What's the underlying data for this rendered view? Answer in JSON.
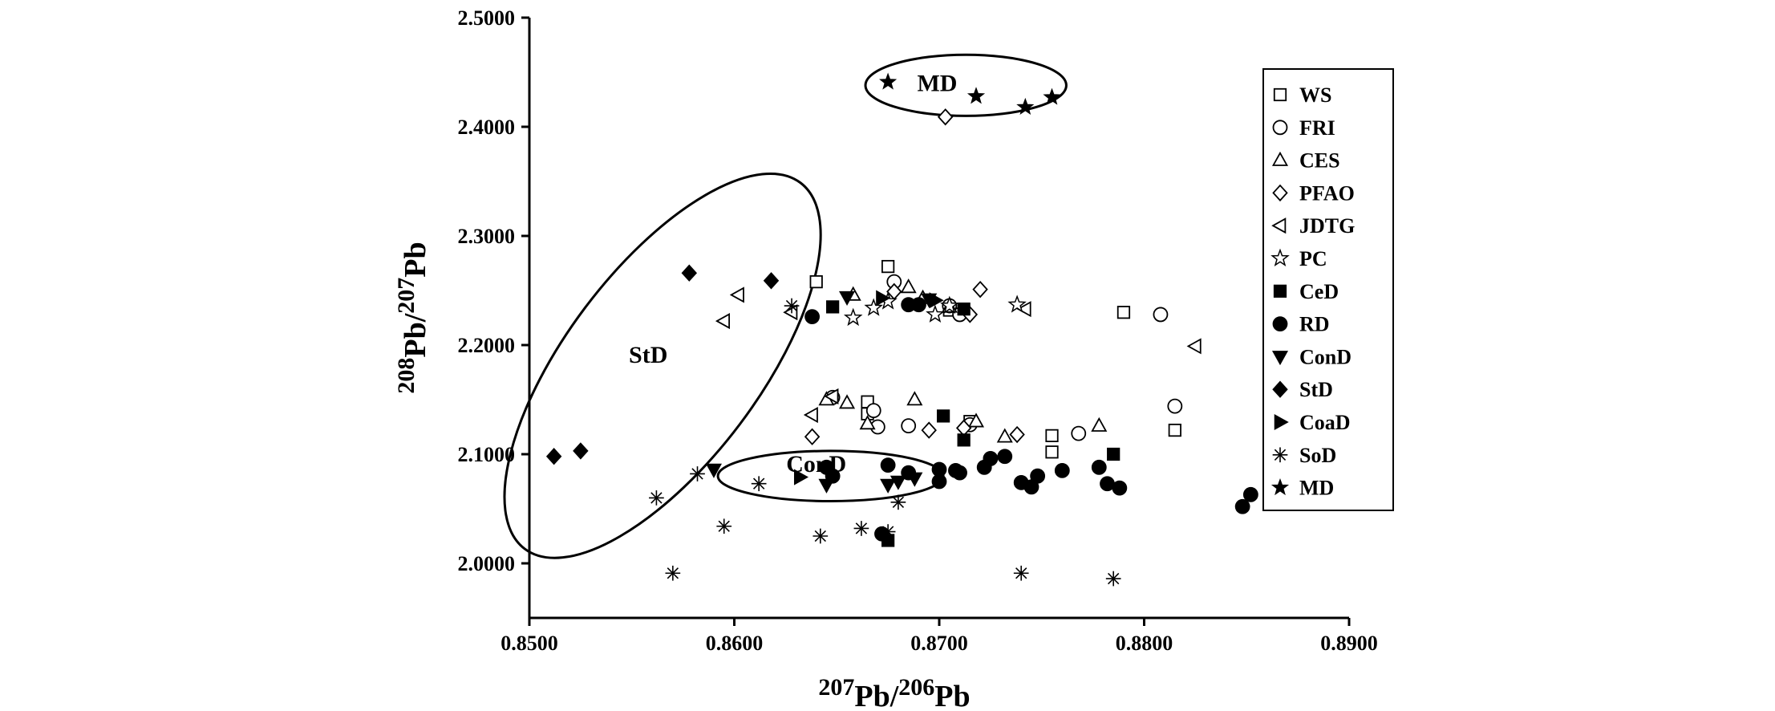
{
  "chart_data": {
    "type": "scatter",
    "title": "",
    "xlabel": {
      "sup1": "207",
      "base1": "Pb/",
      "sup2": "206",
      "base2": "Pb"
    },
    "ylabel": {
      "sup1": "208",
      "base1": "Pb/",
      "sup2": "207",
      "base2": "Pb"
    },
    "xlim": [
      0.85,
      0.89
    ],
    "ylim": [
      1.95,
      2.5
    ],
    "xticks": [
      0.85,
      0.86,
      0.87,
      0.88,
      0.89
    ],
    "xtick_labels": [
      "0.8500",
      "0.8600",
      "0.8700",
      "0.8800",
      "0.8900"
    ],
    "yticks": [
      2.0,
      2.1,
      2.2,
      2.3,
      2.4,
      2.5
    ],
    "ytick_labels": [
      "2.0000",
      "2.1000",
      "2.2000",
      "2.3000",
      "2.4000",
      "2.5000"
    ],
    "grid": false,
    "legend_position": "right",
    "series": [
      {
        "name": "WS",
        "marker": "square-open",
        "points": [
          [
            0.864,
            2.258
          ],
          [
            0.8675,
            2.272
          ],
          [
            0.8705,
            2.232
          ],
          [
            0.879,
            2.23
          ],
          [
            0.8665,
            2.148
          ],
          [
            0.8665,
            2.137
          ],
          [
            0.8715,
            2.13
          ],
          [
            0.8755,
            2.102
          ],
          [
            0.8755,
            2.117
          ],
          [
            0.8815,
            2.122
          ]
        ]
      },
      {
        "name": "FRI",
        "marker": "circle-open",
        "points": [
          [
            0.8678,
            2.258
          ],
          [
            0.8705,
            2.236
          ],
          [
            0.871,
            2.228
          ],
          [
            0.8808,
            2.228
          ],
          [
            0.8648,
            2.152
          ],
          [
            0.8668,
            2.14
          ],
          [
            0.867,
            2.125
          ],
          [
            0.8685,
            2.126
          ],
          [
            0.8715,
            2.127
          ],
          [
            0.8768,
            2.119
          ],
          [
            0.8815,
            2.144
          ]
        ]
      },
      {
        "name": "CES",
        "marker": "triangle-up-open",
        "points": [
          [
            0.8658,
            2.246
          ],
          [
            0.8685,
            2.253
          ],
          [
            0.8705,
            2.235
          ],
          [
            0.8645,
            2.15
          ],
          [
            0.8655,
            2.147
          ],
          [
            0.8665,
            2.128
          ],
          [
            0.8688,
            2.15
          ],
          [
            0.8718,
            2.13
          ],
          [
            0.8732,
            2.116
          ],
          [
            0.8778,
            2.126
          ],
          [
            0.8692,
            2.243
          ]
        ]
      },
      {
        "name": "PFAO",
        "marker": "diamond-open",
        "points": [
          [
            0.8703,
            2.409
          ],
          [
            0.8678,
            2.249
          ],
          [
            0.872,
            2.251
          ],
          [
            0.8715,
            2.228
          ],
          [
            0.8638,
            2.116
          ],
          [
            0.8695,
            2.122
          ],
          [
            0.8712,
            2.124
          ],
          [
            0.8738,
            2.118
          ]
        ]
      },
      {
        "name": "JDTG",
        "marker": "triangle-left-open",
        "points": [
          [
            0.8595,
            2.222
          ],
          [
            0.8602,
            2.246
          ],
          [
            0.8628,
            2.23
          ],
          [
            0.8742,
            2.233
          ],
          [
            0.8825,
            2.199
          ],
          [
            0.8638,
            2.136
          ],
          [
            0.8648,
            2.153
          ]
        ]
      },
      {
        "name": "PC",
        "marker": "star-open",
        "points": [
          [
            0.8658,
            2.225
          ],
          [
            0.8668,
            2.234
          ],
          [
            0.8675,
            2.24
          ],
          [
            0.8698,
            2.228
          ],
          [
            0.8705,
            2.236
          ],
          [
            0.8738,
            2.237
          ]
        ]
      },
      {
        "name": "CeD",
        "marker": "square-filled",
        "points": [
          [
            0.8648,
            2.235
          ],
          [
            0.8712,
            2.233
          ],
          [
            0.8702,
            2.135
          ],
          [
            0.8712,
            2.113
          ],
          [
            0.8785,
            2.1
          ],
          [
            0.8675,
            2.021
          ]
        ]
      },
      {
        "name": "RD",
        "marker": "circle-filled",
        "points": [
          [
            0.8638,
            2.226
          ],
          [
            0.8685,
            2.237
          ],
          [
            0.869,
            2.237
          ],
          [
            0.8675,
            2.09
          ],
          [
            0.8685,
            2.083
          ],
          [
            0.87,
            2.086
          ],
          [
            0.8708,
            2.085
          ],
          [
            0.871,
            2.083
          ],
          [
            0.8722,
            2.088
          ],
          [
            0.8725,
            2.096
          ],
          [
            0.8732,
            2.098
          ],
          [
            0.874,
            2.074
          ],
          [
            0.8745,
            2.07
          ],
          [
            0.8748,
            2.08
          ],
          [
            0.876,
            2.085
          ],
          [
            0.8778,
            2.088
          ],
          [
            0.8782,
            2.073
          ],
          [
            0.8788,
            2.069
          ],
          [
            0.8848,
            2.052
          ],
          [
            0.8852,
            2.063
          ],
          [
            0.8645,
            2.088
          ],
          [
            0.8648,
            2.08
          ],
          [
            0.8672,
            2.027
          ],
          [
            0.87,
            2.075
          ]
        ]
      },
      {
        "name": "ConD",
        "marker": "triangle-down-filled",
        "points": [
          [
            0.859,
            2.086
          ],
          [
            0.8645,
            2.072
          ],
          [
            0.8675,
            2.072
          ],
          [
            0.868,
            2.075
          ],
          [
            0.8688,
            2.078
          ],
          [
            0.8655,
            2.244
          ],
          [
            0.8695,
            2.242
          ]
        ]
      },
      {
        "name": "StD",
        "marker": "diamond-filled",
        "points": [
          [
            0.8512,
            2.098
          ],
          [
            0.8525,
            2.103
          ],
          [
            0.8578,
            2.266
          ],
          [
            0.8618,
            2.259
          ]
        ]
      },
      {
        "name": "CoaD",
        "marker": "triangle-right-filled",
        "points": [
          [
            0.8632,
            2.079
          ],
          [
            0.8672,
            2.243
          ],
          [
            0.8698,
            2.241
          ]
        ]
      },
      {
        "name": "SoD",
        "marker": "asterisk",
        "points": [
          [
            0.8562,
            2.06
          ],
          [
            0.857,
            1.991
          ],
          [
            0.8582,
            2.082
          ],
          [
            0.8595,
            2.034
          ],
          [
            0.8612,
            2.073
          ],
          [
            0.8628,
            2.236
          ],
          [
            0.8642,
            2.025
          ],
          [
            0.8662,
            2.032
          ],
          [
            0.8675,
            2.029
          ],
          [
            0.868,
            2.056
          ],
          [
            0.874,
            1.991
          ],
          [
            0.8785,
            1.986
          ]
        ]
      },
      {
        "name": "MD",
        "marker": "star-filled",
        "points": [
          [
            0.8675,
            2.441
          ],
          [
            0.8718,
            2.428
          ],
          [
            0.8742,
            2.418
          ],
          [
            0.8755,
            2.427
          ]
        ]
      }
    ],
    "ellipses": [
      {
        "label": "MD",
        "cx": 0.8713,
        "cy": 2.438,
        "rx": 0.0049,
        "ry": 0.028,
        "rotate": 0,
        "label_x": 0.8699,
        "label_y": 2.44
      },
      {
        "label": "StD",
        "cx": 0.8565,
        "cy": 2.181,
        "rx": 0.0045,
        "ry": 0.21,
        "rotate": 37,
        "label_x": 0.8558,
        "label_y": 2.191
      },
      {
        "label": "ConD",
        "cx": 0.8647,
        "cy": 2.08,
        "rx": 0.0055,
        "ry": 0.023,
        "rotate": 0,
        "label_x": 0.864,
        "label_y": 2.091
      }
    ]
  }
}
